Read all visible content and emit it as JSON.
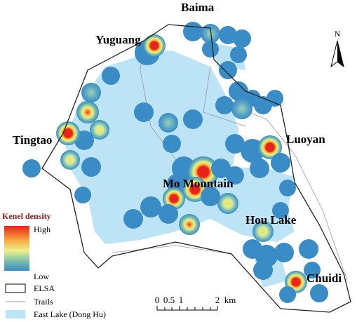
{
  "map": {
    "places": [
      "Baima",
      "Yuguang",
      "Tingtao",
      "Luoyan",
      "Mo Mountain",
      "Hou Lake",
      "Chuidi"
    ],
    "north": "N",
    "legend": {
      "title": "Kenel density",
      "high": "High",
      "low": "Low",
      "items": [
        "ELSA",
        "Trails",
        "East Lake (Dong Hu)"
      ]
    },
    "scale_bar": {
      "ticks": [
        "0",
        "0.5",
        "1",
        "2"
      ],
      "unit": "km"
    }
  }
}
